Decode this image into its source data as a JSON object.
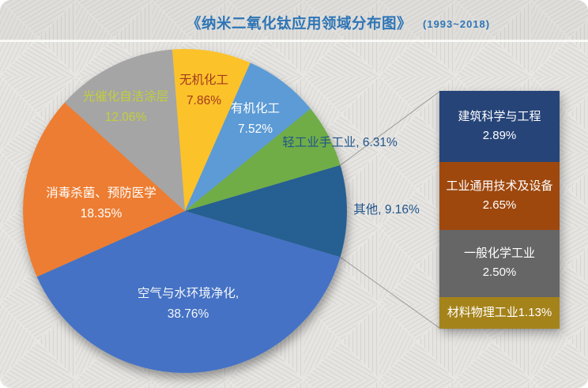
{
  "title": {
    "main": "《纳米二氧化钛应用领域分布图》",
    "period": "(1993~2018)"
  },
  "chart_data": {
    "type": "pie",
    "title": "《纳米二氧化钛应用领域分布图》",
    "subtitle": "(1993~2018)",
    "start_angle_deg": -4.5,
    "legend_position": "none",
    "slices": [
      {
        "name": "无机化工",
        "value": 7.86,
        "color": "#FCC22B",
        "label_color": "#A23B1E",
        "label_lines": [
          "无机化工",
          "7.86%"
        ]
      },
      {
        "name": "有机化工",
        "value": 7.52,
        "color": "#5B9BD5",
        "label_color": "#FFFFFF",
        "label_lines": [
          "有机化工",
          "7.52%"
        ]
      },
      {
        "name": "轻工业手工业",
        "value": 6.31,
        "color": "#70AD47",
        "label_color": "#21558B",
        "label_lines": [
          "轻工业手工业, 6.31%"
        ]
      },
      {
        "name": "其他",
        "value": 9.16,
        "color": "#255E91",
        "label_color": "#21558B",
        "label_lines": [
          "其他, 9.16%"
        ]
      },
      {
        "name": "空气与水环境净化",
        "value": 38.76,
        "color": "#4472C4",
        "label_color": "#F4F6FA",
        "label_lines": [
          "空气与水环境净化,",
          "38.76%"
        ]
      },
      {
        "name": "消毒杀菌、预防医学",
        "value": 18.35,
        "color": "#ED7D31",
        "label_color": "#FFFFFF",
        "label_lines": [
          "消毒杀菌、预防医学",
          "18.35%"
        ]
      },
      {
        "name": "光催化自洁涂层",
        "value": 12.06,
        "color": "#A5A5A5",
        "label_color": "#C3CE3B",
        "label_lines": [
          "光催化自洁涂层",
          "12.06%"
        ]
      }
    ],
    "breakout": {
      "source_slice": "其他",
      "items": [
        {
          "name": "建筑科学与工程",
          "value": 2.89,
          "color": "#264478",
          "label_lines": [
            "建筑科学与工程",
            "2.89%"
          ]
        },
        {
          "name": "工业通用技术及设备",
          "value": 2.65,
          "color": "#9E480E",
          "label_lines": [
            "工业通用技术及设备",
            "2.65%"
          ]
        },
        {
          "name": "一般化学工业",
          "value": 2.5,
          "color": "#666666",
          "label_lines": [
            "一般化学工业",
            "2.50%"
          ]
        },
        {
          "name": "材料物理工业",
          "value": 1.13,
          "color": "#A5831B",
          "label_lines": [
            "材料物理工业1.13%"
          ]
        }
      ]
    }
  }
}
